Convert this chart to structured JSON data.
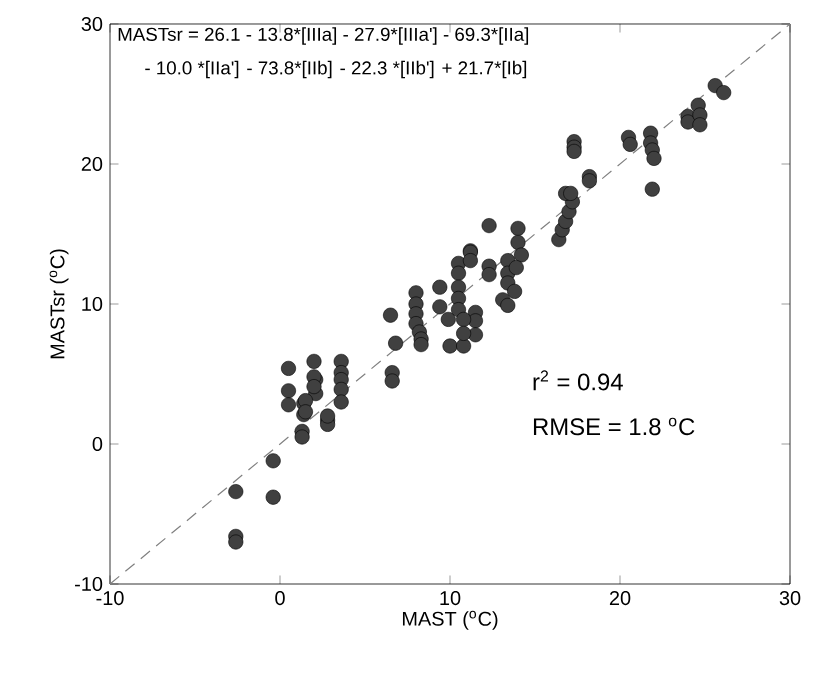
{
  "chart_data": {
    "type": "scatter",
    "xlabel": "MAST ($^{o}$C)",
    "ylabel": "MASTsr ($^{o}$C)",
    "annotations": [
      "MASTsr = 26.1 - 13.8*[IIIa] - 27.9*[IIIa'] - 69.3*[IIa]",
      "- 10.0 *[IIa']",
      "- 73.8*[IIb]",
      "- 22.3 *[IIb']",
      "+ 21.7*[Ib]",
      "r$^{2}$ = 0.94",
      "RMSE = 1.8 $^{o}$C"
    ],
    "xlim": [
      -10,
      30
    ],
    "ylim": [
      -10,
      30
    ],
    "xticks": [
      -10,
      0,
      10,
      20,
      30
    ],
    "yticks": [
      -10,
      0,
      10,
      20,
      30
    ],
    "grid": false,
    "legend": false,
    "series": [
      {
        "color": "#404040",
        "marker": "circle",
        "x": [
          -2.6,
          -2.6,
          -2.6,
          -0.4,
          -0.4,
          0.5,
          0.5,
          0.5,
          1.4,
          1.4,
          1.3,
          1.3,
          2.8,
          2.8,
          2.8,
          2.1,
          2.1,
          2.0,
          2.0,
          2.0,
          1.5,
          1.5,
          3.6,
          3.6,
          3.6,
          3.6,
          3.6,
          6.6,
          6.6,
          6.5,
          6.8,
          8.0,
          8.0,
          8.0,
          8.0,
          8.2,
          8.3,
          8.3,
          9.4,
          9.4,
          9.9,
          10.0,
          10.8,
          10.5,
          10.5,
          10.5,
          10.5,
          10.5,
          11.2,
          11.2,
          11.2,
          11.5,
          11.5,
          11.5,
          10.8,
          10.8,
          12.3,
          12.3,
          12.3,
          13.4,
          13.4,
          13.4,
          13.1,
          13.4,
          14.0,
          14.0,
          14.2,
          13.9,
          13.8,
          16.4,
          16.6,
          16.8,
          17.0,
          17.2,
          16.8,
          17.1,
          18.2,
          18.2,
          17.3,
          17.3,
          17.3,
          20.5,
          20.6,
          21.8,
          21.8,
          21.9,
          22.0,
          21.9,
          24.0,
          24.0,
          24.6,
          24.7,
          24.7,
          25.6,
          26.1
        ],
        "values": [
          -3.4,
          -6.6,
          -7.0,
          -1.2,
          -3.8,
          5.4,
          3.8,
          2.8,
          2.9,
          2.1,
          0.9,
          0.5,
          1.7,
          1.4,
          2.0,
          4.6,
          3.6,
          5.9,
          4.8,
          4.1,
          3.1,
          2.3,
          5.9,
          5.1,
          4.6,
          3.9,
          3.0,
          5.1,
          4.5,
          9.2,
          7.2,
          10.8,
          10.0,
          9.3,
          8.6,
          8.0,
          7.5,
          7.1,
          11.2,
          9.8,
          8.9,
          7.0,
          7.0,
          12.9,
          12.2,
          11.2,
          10.4,
          9.6,
          13.8,
          13.7,
          13.1,
          9.4,
          8.8,
          7.8,
          8.9,
          7.9,
          15.6,
          12.7,
          12.1,
          13.1,
          12.2,
          11.5,
          10.3,
          9.9,
          15.4,
          14.4,
          13.5,
          12.6,
          10.9,
          14.6,
          15.3,
          15.9,
          16.6,
          17.3,
          17.9,
          17.9,
          19.1,
          18.8,
          21.6,
          21.2,
          20.9,
          21.9,
          21.4,
          22.2,
          21.5,
          21.0,
          20.4,
          18.2,
          23.4,
          23.0,
          24.2,
          23.5,
          22.8,
          25.6,
          25.1
        ]
      },
      {
        "type": "line",
        "color": "#808080",
        "line_style": "dashed",
        "marker": "none",
        "x": [
          -10,
          30
        ],
        "values": [
          -10,
          30
        ]
      }
    ]
  }
}
